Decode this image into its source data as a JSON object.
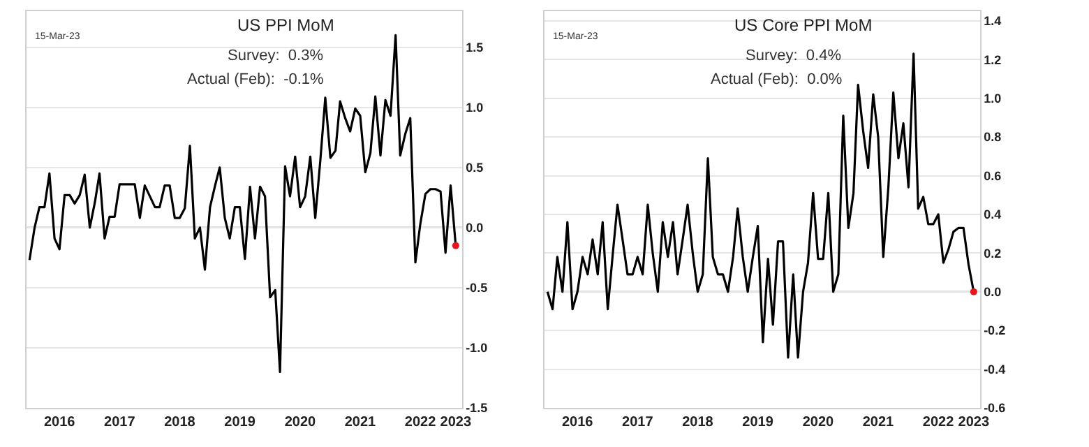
{
  "chart_data": [
    {
      "type": "line",
      "title": "US PPI MoM",
      "annotations": [
        "15-Mar-23",
        "Survey:  0.3%",
        "Actual (Feb):  -0.1%"
      ],
      "x": [
        "2016-01",
        "2016-02",
        "2016-03",
        "2016-04",
        "2016-05",
        "2016-06",
        "2016-07",
        "2016-08",
        "2016-09",
        "2016-10",
        "2016-11",
        "2016-12",
        "2017-01",
        "2017-02",
        "2017-03",
        "2017-04",
        "2017-05",
        "2017-06",
        "2017-07",
        "2017-08",
        "2017-09",
        "2017-10",
        "2017-11",
        "2017-12",
        "2018-01",
        "2018-02",
        "2018-03",
        "2018-04",
        "2018-05",
        "2018-06",
        "2018-07",
        "2018-08",
        "2018-09",
        "2018-10",
        "2018-11",
        "2018-12",
        "2019-01",
        "2019-02",
        "2019-03",
        "2019-04",
        "2019-05",
        "2019-06",
        "2019-07",
        "2019-08",
        "2019-09",
        "2019-10",
        "2019-11",
        "2019-12",
        "2020-01",
        "2020-02",
        "2020-03",
        "2020-04",
        "2020-05",
        "2020-06",
        "2020-07",
        "2020-08",
        "2020-09",
        "2020-10",
        "2020-11",
        "2020-12",
        "2021-01",
        "2021-02",
        "2021-03",
        "2021-04",
        "2021-05",
        "2021-06",
        "2021-07",
        "2021-08",
        "2021-09",
        "2021-10",
        "2021-11",
        "2021-12",
        "2022-01",
        "2022-02",
        "2022-03",
        "2022-04",
        "2022-05",
        "2022-06",
        "2022-07",
        "2022-08",
        "2022-09",
        "2022-10",
        "2022-11",
        "2022-12",
        "2023-01",
        "2023-02"
      ],
      "series": [
        {
          "color": "#000000",
          "values": [
            -0.27,
            0.0,
            0.17,
            0.17,
            0.45,
            -0.09,
            -0.18,
            0.27,
            0.27,
            0.2,
            0.27,
            0.44,
            0.0,
            0.21,
            0.45,
            -0.09,
            0.09,
            0.09,
            0.36,
            0.36,
            0.36,
            0.36,
            0.08,
            0.35,
            0.26,
            0.17,
            0.17,
            0.35,
            0.35,
            0.08,
            0.08,
            0.16,
            0.68,
            -0.09,
            0.0,
            -0.35,
            0.17,
            0.35,
            0.5,
            0.08,
            -0.09,
            0.17,
            0.17,
            -0.26,
            0.34,
            -0.09,
            0.34,
            0.26,
            -0.58,
            -0.52,
            -1.2,
            0.51,
            0.26,
            0.59,
            0.17,
            0.26,
            0.59,
            0.08,
            0.56,
            1.08,
            0.58,
            0.64,
            1.05,
            0.91,
            0.8,
            0.99,
            0.93,
            0.46,
            0.62,
            1.09,
            0.6,
            1.06,
            0.93,
            1.6,
            0.6,
            0.78,
            0.91,
            -0.29,
            0.03,
            0.28,
            0.32,
            0.32,
            0.3,
            -0.21,
            0.35,
            -0.15
          ]
        },
        {
          "type": "scatter",
          "color": "#e8141b",
          "marker": "circle",
          "x": [
            "2023-02"
          ],
          "values": [
            -0.15
          ]
        }
      ],
      "xlim": [
        "2015-12-15",
        "2023-03-10"
      ],
      "xticks": [
        {
          "value": "2016-07",
          "label": "2016"
        },
        {
          "value": "2017-07",
          "label": "2017"
        },
        {
          "value": "2018-07",
          "label": "2018"
        },
        {
          "value": "2019-07",
          "label": "2019"
        },
        {
          "value": "2020-07",
          "label": "2020"
        },
        {
          "value": "2021-07",
          "label": "2021"
        },
        {
          "value": "2022-07",
          "label": "2022"
        },
        {
          "value": "2023-02",
          "label": "2023"
        }
      ],
      "ylim": [
        -1.5,
        1.8
      ],
      "yticks": [
        {
          "value": -1.5,
          "label": "-1.5"
        },
        {
          "value": -1.0,
          "label": "-1.0"
        },
        {
          "value": -0.5,
          "label": "-0.5"
        },
        {
          "value": 0,
          "label": "0.0"
        },
        {
          "value": 0.5,
          "label": "0.5"
        },
        {
          "value": 1.0,
          "label": "1.0"
        },
        {
          "value": 1.5,
          "label": "1.5"
        }
      ],
      "grid": "y",
      "ref_lines": [
        {
          "axis": "y",
          "value": 0,
          "color": "#808080"
        }
      ]
    },
    {
      "type": "line",
      "title": "US Core PPI MoM",
      "annotations": [
        "15-Mar-23",
        "Survey:  0.4%",
        "Actual (Feb):  0.0%"
      ],
      "x": [
        "2016-01",
        "2016-02",
        "2016-03",
        "2016-04",
        "2016-05",
        "2016-06",
        "2016-07",
        "2016-08",
        "2016-09",
        "2016-10",
        "2016-11",
        "2016-12",
        "2017-01",
        "2017-02",
        "2017-03",
        "2017-04",
        "2017-05",
        "2017-06",
        "2017-07",
        "2017-08",
        "2017-09",
        "2017-10",
        "2017-11",
        "2017-12",
        "2018-01",
        "2018-02",
        "2018-03",
        "2018-04",
        "2018-05",
        "2018-06",
        "2018-07",
        "2018-08",
        "2018-09",
        "2018-10",
        "2018-11",
        "2018-12",
        "2019-01",
        "2019-02",
        "2019-03",
        "2019-04",
        "2019-05",
        "2019-06",
        "2019-07",
        "2019-08",
        "2019-09",
        "2019-10",
        "2019-11",
        "2019-12",
        "2020-01",
        "2020-02",
        "2020-03",
        "2020-04",
        "2020-05",
        "2020-06",
        "2020-07",
        "2020-08",
        "2020-09",
        "2020-10",
        "2020-11",
        "2020-12",
        "2021-01",
        "2021-02",
        "2021-03",
        "2021-04",
        "2021-05",
        "2021-06",
        "2021-07",
        "2021-08",
        "2021-09",
        "2021-10",
        "2021-11",
        "2021-12",
        "2022-01",
        "2022-02",
        "2022-03",
        "2022-04",
        "2022-05",
        "2022-06",
        "2022-07",
        "2022-08",
        "2022-09",
        "2022-10",
        "2022-11",
        "2022-12",
        "2023-01",
        "2023-02"
      ],
      "series": [
        {
          "color": "#000000",
          "values": [
            0.0,
            -0.09,
            0.18,
            0.0,
            0.36,
            -0.09,
            0.0,
            0.18,
            0.09,
            0.27,
            0.09,
            0.36,
            -0.09,
            0.2,
            0.45,
            0.27,
            0.09,
            0.09,
            0.18,
            0.09,
            0.45,
            0.2,
            0.0,
            0.36,
            0.18,
            0.36,
            0.09,
            0.27,
            0.45,
            0.2,
            0.0,
            0.09,
            0.69,
            0.18,
            0.09,
            0.09,
            0.0,
            0.18,
            0.43,
            0.18,
            0.0,
            0.18,
            0.34,
            -0.26,
            0.17,
            -0.17,
            0.26,
            0.26,
            -0.34,
            0.09,
            -0.34,
            0.0,
            0.15,
            0.51,
            0.17,
            0.17,
            0.51,
            0.0,
            0.09,
            0.91,
            0.33,
            0.51,
            1.07,
            0.83,
            0.64,
            1.02,
            0.8,
            0.18,
            0.54,
            1.03,
            0.69,
            0.87,
            0.54,
            1.23,
            0.43,
            0.49,
            0.35,
            0.35,
            0.4,
            0.15,
            0.22,
            0.31,
            0.33,
            0.33,
            0.14,
            0.0
          ]
        },
        {
          "type": "scatter",
          "color": "#e8141b",
          "marker": "circle",
          "x": [
            "2023-02"
          ],
          "values": [
            0.0
          ]
        }
      ],
      "xlim": [
        "2015-12-15",
        "2023-03-10"
      ],
      "xticks": [
        {
          "value": "2016-07",
          "label": "2016"
        },
        {
          "value": "2017-07",
          "label": "2017"
        },
        {
          "value": "2018-07",
          "label": "2018"
        },
        {
          "value": "2019-07",
          "label": "2019"
        },
        {
          "value": "2020-07",
          "label": "2020"
        },
        {
          "value": "2021-07",
          "label": "2021"
        },
        {
          "value": "2022-07",
          "label": "2022"
        },
        {
          "value": "2023-02",
          "label": "2023"
        }
      ],
      "ylim": [
        -0.6,
        1.45
      ],
      "yticks": [
        {
          "value": -0.6,
          "label": "-0.6"
        },
        {
          "value": -0.4,
          "label": "-0.4"
        },
        {
          "value": -0.2,
          "label": "-0.2"
        },
        {
          "value": 0,
          "label": "0.0"
        },
        {
          "value": 0.2,
          "label": "0.2"
        },
        {
          "value": 0.4,
          "label": "0.4"
        },
        {
          "value": 0.6,
          "label": "0.6"
        },
        {
          "value": 0.8,
          "label": "0.8"
        },
        {
          "value": 1.0,
          "label": "1.0"
        },
        {
          "value": 1.2,
          "label": "1.2"
        },
        {
          "value": 1.4,
          "label": "1.4"
        }
      ],
      "grid": "y",
      "ref_lines": [
        {
          "axis": "y",
          "value": 0,
          "color": "#808080"
        }
      ]
    }
  ]
}
